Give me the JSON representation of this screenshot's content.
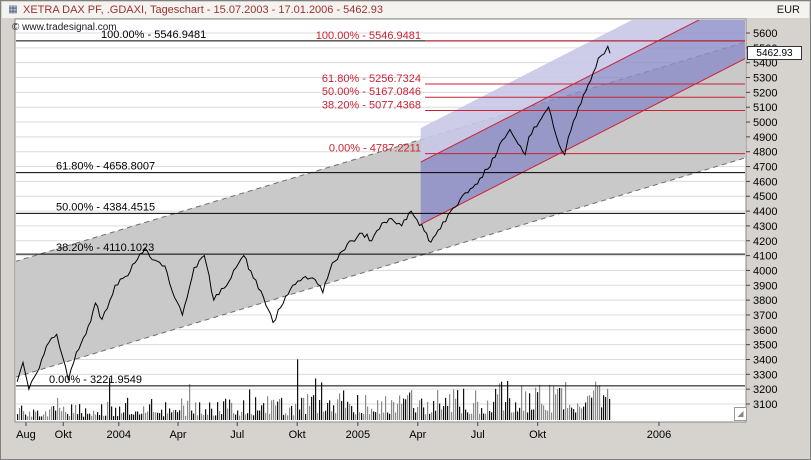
{
  "window": {
    "title": "XETRA DAX PF, .GDAXI, Tageschart - 15.07.2003 - 17.01.2006 - 5462.93",
    "currency": "EUR"
  },
  "icons": {
    "window_icon": "▦",
    "scroll_corner_icon": "◢"
  },
  "watermark": "© www.tradesignal.com",
  "chart_data": {
    "type": "line",
    "instrument": "XETRA DAX PF",
    "symbol": ".GDAXI",
    "timeframe": "Tageschart",
    "date_range": "15.07.2003 - 17.01.2006",
    "last_price": 5462.93,
    "last_price_label": "5462.93",
    "currency": "EUR",
    "y_axis": {
      "min": 3100,
      "max": 5600,
      "step": 100,
      "side": "right"
    },
    "x_axis": {
      "labels": [
        {
          "label": "Aug",
          "t": 0.015
        },
        {
          "label": "Okt",
          "t": 0.066
        },
        {
          "label": "2004",
          "t": 0.142
        },
        {
          "label": "Apr",
          "t": 0.223
        },
        {
          "label": "Jul",
          "t": 0.304
        },
        {
          "label": "Okt",
          "t": 0.386
        },
        {
          "label": "2005",
          "t": 0.469
        },
        {
          "label": "Apr",
          "t": 0.551
        },
        {
          "label": "Jul",
          "t": 0.633
        },
        {
          "label": "Okt",
          "t": 0.715
        },
        {
          "label": "2006",
          "t": 0.881
        }
      ]
    },
    "fib_retracement_black": {
      "levels": [
        {
          "label": "100.00% - 5546.9481",
          "value": 5546.9481
        },
        {
          "label": "61.80% - 4658.8007",
          "value": 4658.8007
        },
        {
          "label": "50.00% - 4384.4515",
          "value": 4384.4515
        },
        {
          "label": "38.20% - 4110.1023",
          "value": 4110.1023
        },
        {
          "label": "0.00% - 3221.9549",
          "value": 3221.9549
        }
      ]
    },
    "fib_projection_red": {
      "levels": [
        {
          "label": "100.00% - 5546.9481",
          "value": 5546.9481
        },
        {
          "label": "61.80% - 5256.7324",
          "value": 5256.7324
        },
        {
          "label": "50.00% - 5167.0846",
          "value": 5167.0846
        },
        {
          "label": "38.20% - 5077.4368",
          "value": 5077.4368
        },
        {
          "label": "0.00% - 4787.2211",
          "value": 4787.2211
        }
      ]
    },
    "gray_trend_channel": {
      "t_start": 0,
      "t_end": 1,
      "bottom_start": 3280,
      "bottom_end": 4760,
      "channel_width": 780
    },
    "blue_trend_channel": {
      "t_start": 0.555,
      "t_end": 1,
      "bottom_start": 4310,
      "bottom_end": 5430,
      "channel_width": 420,
      "light_band_extra": 230
    },
    "data_end_t": 0.814,
    "price_series": [
      [
        0.003,
        3250
      ],
      [
        0.011,
        3380
      ],
      [
        0.019,
        3200
      ],
      [
        0.03,
        3310
      ],
      [
        0.043,
        3490
      ],
      [
        0.057,
        3570
      ],
      [
        0.065,
        3420
      ],
      [
        0.073,
        3260
      ],
      [
        0.084,
        3450
      ],
      [
        0.097,
        3570
      ],
      [
        0.11,
        3780
      ],
      [
        0.119,
        3670
      ],
      [
        0.137,
        3900
      ],
      [
        0.151,
        3960
      ],
      [
        0.164,
        4050
      ],
      [
        0.178,
        4150
      ],
      [
        0.191,
        4070
      ],
      [
        0.205,
        4030
      ],
      [
        0.218,
        3820
      ],
      [
        0.229,
        3700
      ],
      [
        0.245,
        4020
      ],
      [
        0.259,
        4100
      ],
      [
        0.272,
        3800
      ],
      [
        0.286,
        3880
      ],
      [
        0.299,
        4000
      ],
      [
        0.313,
        4100
      ],
      [
        0.326,
        3950
      ],
      [
        0.34,
        3820
      ],
      [
        0.353,
        3650
      ],
      [
        0.367,
        3780
      ],
      [
        0.38,
        3900
      ],
      [
        0.394,
        3950
      ],
      [
        0.407,
        3950
      ],
      [
        0.421,
        3850
      ],
      [
        0.434,
        4050
      ],
      [
        0.448,
        4130
      ],
      [
        0.461,
        4200
      ],
      [
        0.475,
        4250
      ],
      [
        0.488,
        4200
      ],
      [
        0.502,
        4320
      ],
      [
        0.515,
        4350
      ],
      [
        0.529,
        4300
      ],
      [
        0.542,
        4400
      ],
      [
        0.55,
        4340
      ],
      [
        0.563,
        4250
      ],
      [
        0.569,
        4190
      ],
      [
        0.582,
        4280
      ],
      [
        0.596,
        4400
      ],
      [
        0.609,
        4480
      ],
      [
        0.623,
        4550
      ],
      [
        0.636,
        4620
      ],
      [
        0.65,
        4700
      ],
      [
        0.663,
        4850
      ],
      [
        0.677,
        4950
      ],
      [
        0.685,
        4880
      ],
      [
        0.698,
        4780
      ],
      [
        0.703,
        4900
      ],
      [
        0.717,
        5000
      ],
      [
        0.73,
        5100
      ],
      [
        0.744,
        4850
      ],
      [
        0.752,
        4780
      ],
      [
        0.757,
        4900
      ],
      [
        0.771,
        5100
      ],
      [
        0.784,
        5250
      ],
      [
        0.798,
        5430
      ],
      [
        0.806,
        5460
      ],
      [
        0.811,
        5510
      ],
      [
        0.814,
        5462.93
      ]
    ],
    "volume_envelope": [
      14,
      16,
      15,
      18,
      20,
      22,
      26,
      20,
      22,
      21,
      24,
      22,
      26,
      24,
      26,
      28,
      32,
      27,
      28,
      30,
      32,
      38,
      33,
      35,
      42,
      36,
      40,
      38,
      42,
      34
    ],
    "colors": {
      "title_text": "#993333",
      "plot_bg": "#ffffff",
      "frame_bg": "#d6d3ce",
      "grid": "#dcdcdc",
      "gray_fill": "#c9c9c9",
      "gray_border": "#6e6e6e",
      "blue_fill": "#8c8cc8",
      "blue_light": "#c8c8e8",
      "red": "#cc2233",
      "price_line": "#000000",
      "volume_dark": "#111111",
      "volume_gray": "#8a8a8a"
    }
  }
}
